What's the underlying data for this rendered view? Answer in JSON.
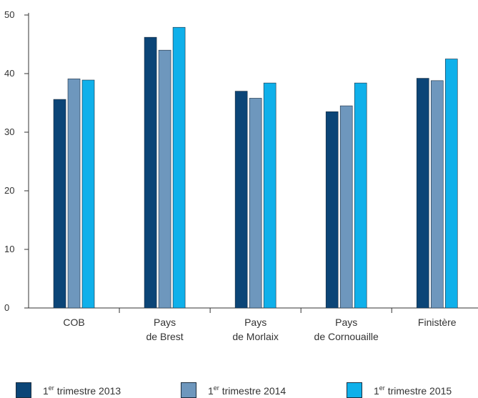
{
  "chart_data": {
    "type": "bar",
    "categories": [
      [
        "COB"
      ],
      [
        "Pays",
        "de Brest"
      ],
      [
        "Pays",
        "de Morlaix"
      ],
      [
        "Pays",
        "de Cornouaille"
      ],
      [
        "Finistère"
      ]
    ],
    "series": [
      {
        "name": "1er trimestre 2013",
        "sup": "er",
        "prefix": "1",
        "suffix": " trimestre 2013",
        "color": "#0b4577",
        "values": [
          35.6,
          46.2,
          37.0,
          33.5,
          39.2
        ]
      },
      {
        "name": "1er trimestre 2014",
        "sup": "er",
        "prefix": "1",
        "suffix": " trimestre 2014",
        "color": "#6e97bd",
        "values": [
          39.1,
          44.0,
          35.8,
          34.5,
          38.8
        ]
      },
      {
        "name": "1er trimestre 2015",
        "sup": "er",
        "prefix": "1",
        "suffix": " trimestre 2015",
        "color": "#0fb0ea",
        "values": [
          38.9,
          47.9,
          38.4,
          38.4,
          42.5
        ]
      }
    ],
    "yticks": [
      0,
      10,
      20,
      30,
      40,
      50
    ],
    "ylim": [
      0,
      50
    ],
    "grid": false,
    "legend_position": "bottom"
  }
}
